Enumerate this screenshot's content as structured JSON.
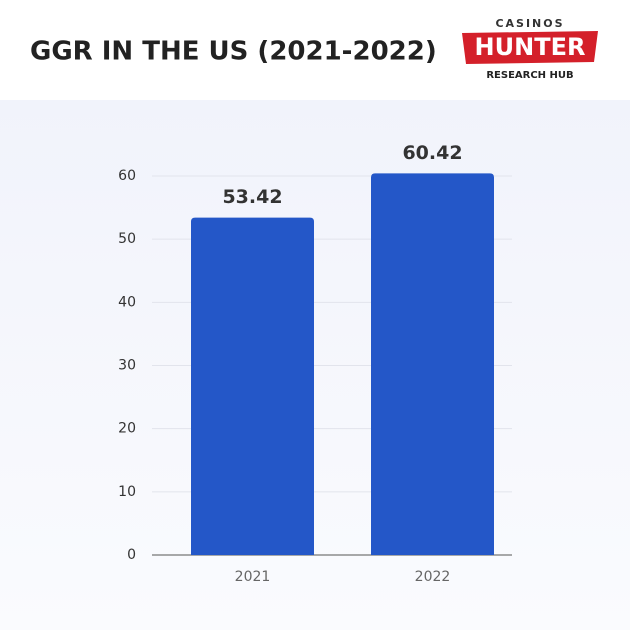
{
  "logo": {
    "top": "CASINOS",
    "main": "HUNTER",
    "bottom": "RESEARCH HUB"
  },
  "chart_data": {
    "type": "bar",
    "title": "GGR IN THE US (2021-2022)",
    "categories": [
      "2021",
      "2022"
    ],
    "values": [
      53.42,
      60.42
    ],
    "color": "#2457c8",
    "ylim": [
      0,
      60
    ],
    "yticks": [
      0,
      10,
      20,
      30,
      40,
      50,
      60
    ],
    "grid": true
  }
}
